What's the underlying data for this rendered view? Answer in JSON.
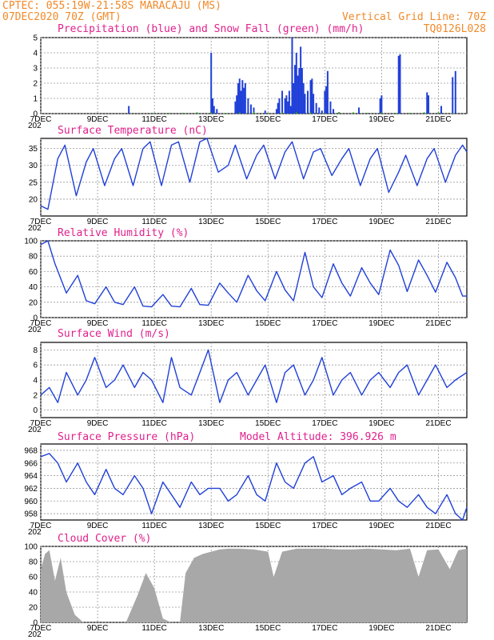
{
  "header": {
    "line1": "CPTEC:   055:19W-21:58S   MARACAJU (MS)",
    "line2": "07DEC2020 70Z (GMT)",
    "grid_note": "Vertical Grid Line: 70Z",
    "code": "TQ0126L028"
  },
  "colors": {
    "header": "#f08a2a",
    "title": "#e0208c",
    "series": "#2040d8",
    "snow": "#20a020",
    "cloud": "#a8a8a8"
  },
  "x_axis": {
    "start_day": 7,
    "end_day": 22,
    "tick_labels": [
      "7DEC",
      "9DEC",
      "11DEC",
      "13DEC",
      "15DEC",
      "17DEC",
      "19DEC",
      "21DEC"
    ],
    "tick_days": [
      7,
      9,
      11,
      13,
      15,
      17,
      19,
      21
    ],
    "year_stub": "202"
  },
  "chart_data": [
    {
      "type": "bar",
      "title": "Precipitation (blue) and Snow Fall (green) (mm/h)",
      "ylim": [
        0,
        5
      ],
      "yticks": [
        0,
        1,
        2,
        3,
        4,
        5
      ],
      "series": [
        {
          "name": "Precipitation",
          "color": "#2040d8",
          "x": [
            10.1,
            13.0,
            13.05,
            13.1,
            13.2,
            13.85,
            13.9,
            13.95,
            14.0,
            14.05,
            14.1,
            14.15,
            14.2,
            14.3,
            14.4,
            14.5,
            14.9,
            15.3,
            15.35,
            15.4,
            15.5,
            15.6,
            15.65,
            15.7,
            15.75,
            15.8,
            15.85,
            15.9,
            15.95,
            16.0,
            16.05,
            16.1,
            16.15,
            16.2,
            16.25,
            16.3,
            16.4,
            16.5,
            16.55,
            16.6,
            16.7,
            16.8,
            16.9,
            17.0,
            17.05,
            17.1,
            17.2,
            17.3,
            18.2,
            18.95,
            19.0,
            19.6,
            19.65,
            20.6,
            20.65,
            21.1,
            21.5,
            21.6
          ],
          "y": [
            0.5,
            4.0,
            1.0,
            0.5,
            0.3,
            0.8,
            1.2,
            2.0,
            2.3,
            1.5,
            2.2,
            1.7,
            2.0,
            1.0,
            0.6,
            0.4,
            0.2,
            0.3,
            0.7,
            1.0,
            1.5,
            1.0,
            1.2,
            0.8,
            1.5,
            0.5,
            5.0,
            2.0,
            3.2,
            4.0,
            2.5,
            3.0,
            4.4,
            3.0,
            2.0,
            1.3,
            1.5,
            2.2,
            2.3,
            1.3,
            0.7,
            0.4,
            0.2,
            1.5,
            1.8,
            2.8,
            0.8,
            0.3,
            0.4,
            1.0,
            1.2,
            3.8,
            3.9,
            1.4,
            1.2,
            0.5,
            2.4,
            2.8
          ]
        },
        {
          "name": "Snow Fall",
          "color": "#20a020",
          "x": [
            11.0,
            11.5,
            12.0,
            12.5,
            13.0,
            13.5,
            14.0,
            14.5,
            15.0,
            15.5,
            16.0,
            16.5,
            17.0,
            17.5,
            18.0,
            18.5,
            19.0,
            19.5,
            20.0,
            20.5,
            21.0,
            21.5
          ],
          "y": [
            0.05,
            0.05,
            0.05,
            0.08,
            0.08,
            0.05,
            0.08,
            0.1,
            0.05,
            0.08,
            0.1,
            0.08,
            0.05,
            0.1,
            0.08,
            0.05,
            0.08,
            0.05,
            0.05,
            0.08,
            0.08,
            0.05
          ]
        }
      ]
    },
    {
      "type": "line",
      "title": "Surface Temperature (nC)",
      "ylim": [
        15,
        38
      ],
      "yticks": [
        20,
        25,
        30,
        35
      ],
      "series": [
        {
          "name": "Temperature",
          "color": "#2040d8",
          "x": [
            7.0,
            7.25,
            7.6,
            7.85,
            8.25,
            8.6,
            8.85,
            9.25,
            9.6,
            9.85,
            10.25,
            10.6,
            10.85,
            11.25,
            11.6,
            11.85,
            12.25,
            12.6,
            12.85,
            13.25,
            13.6,
            13.85,
            14.25,
            14.6,
            14.85,
            15.25,
            15.6,
            15.85,
            16.25,
            16.6,
            16.85,
            17.25,
            17.6,
            17.85,
            18.25,
            18.6,
            18.85,
            19.25,
            19.6,
            19.85,
            20.25,
            20.6,
            20.85,
            21.25,
            21.6,
            21.85,
            22.0
          ],
          "y": [
            18,
            17,
            32,
            36,
            21,
            31,
            35,
            24,
            32,
            35,
            24,
            35,
            37,
            24,
            36,
            37,
            25,
            37,
            38,
            28,
            30,
            36,
            26,
            33,
            36,
            26,
            34,
            37,
            26,
            34,
            35,
            27,
            32,
            35,
            24,
            32,
            35,
            22,
            28,
            33,
            24,
            32,
            35,
            25,
            33,
            36,
            34
          ]
        }
      ]
    },
    {
      "type": "line",
      "title": "Relative Humidity (%)",
      "ylim": [
        0,
        100
      ],
      "yticks": [
        0,
        20,
        40,
        60,
        80,
        100
      ],
      "series": [
        {
          "name": "Relative Humidity",
          "color": "#2040d8",
          "x": [
            7.0,
            7.25,
            7.5,
            7.9,
            8.3,
            8.6,
            8.9,
            9.3,
            9.6,
            9.9,
            10.3,
            10.6,
            10.9,
            11.3,
            11.6,
            11.9,
            12.3,
            12.6,
            12.9,
            13.3,
            13.6,
            13.9,
            14.3,
            14.6,
            14.9,
            15.3,
            15.6,
            15.9,
            16.3,
            16.6,
            16.9,
            17.3,
            17.6,
            17.9,
            18.3,
            18.6,
            18.9,
            19.3,
            19.6,
            19.9,
            20.3,
            20.6,
            20.9,
            21.3,
            21.6,
            21.85,
            22.0
          ],
          "y": [
            95,
            100,
            70,
            32,
            55,
            22,
            18,
            40,
            20,
            17,
            40,
            15,
            14,
            30,
            15,
            14,
            38,
            17,
            16,
            45,
            32,
            20,
            55,
            35,
            22,
            60,
            36,
            22,
            85,
            40,
            26,
            70,
            45,
            28,
            65,
            45,
            30,
            88,
            68,
            34,
            75,
            55,
            33,
            72,
            52,
            28,
            28
          ]
        }
      ]
    },
    {
      "type": "line",
      "title": "Surface Wind (m/s)",
      "ylim": [
        -1,
        9
      ],
      "yticks": [
        0,
        2,
        4,
        6,
        8
      ],
      "series": [
        {
          "name": "Wind Speed",
          "color": "#2040d8",
          "x": [
            7.0,
            7.3,
            7.6,
            7.9,
            8.3,
            8.6,
            8.9,
            9.3,
            9.6,
            9.9,
            10.3,
            10.6,
            10.9,
            11.3,
            11.6,
            11.9,
            12.3,
            12.6,
            12.9,
            13.3,
            13.6,
            13.9,
            14.3,
            14.6,
            14.9,
            15.3,
            15.6,
            15.9,
            16.3,
            16.6,
            16.9,
            17.3,
            17.6,
            17.9,
            18.3,
            18.6,
            18.9,
            19.3,
            19.6,
            19.9,
            20.3,
            20.6,
            20.9,
            21.3,
            21.6,
            22.0
          ],
          "y": [
            2,
            3,
            1,
            5,
            2,
            4,
            7,
            3,
            4,
            6,
            3,
            5,
            4,
            1,
            7,
            3,
            2,
            5,
            8,
            1,
            4,
            5,
            2,
            4,
            6,
            1,
            5,
            6,
            2,
            4,
            7,
            2,
            4,
            5,
            2,
            4,
            5,
            3,
            5,
            6,
            2,
            4,
            6,
            3,
            4,
            5
          ]
        }
      ]
    },
    {
      "type": "line",
      "title": "Surface Pressure (hPa)",
      "subtitle": "Model Altitude: 396.926 m",
      "ylim": [
        957,
        969
      ],
      "yticks": [
        958,
        960,
        962,
        964,
        966,
        968
      ],
      "series": [
        {
          "name": "Pressure",
          "color": "#2040d8",
          "x": [
            7.0,
            7.3,
            7.6,
            7.9,
            8.3,
            8.6,
            8.9,
            9.3,
            9.6,
            9.9,
            10.3,
            10.6,
            10.9,
            11.3,
            11.6,
            11.9,
            12.3,
            12.6,
            12.9,
            13.3,
            13.6,
            13.9,
            14.3,
            14.6,
            14.9,
            15.3,
            15.6,
            15.9,
            16.3,
            16.6,
            16.9,
            17.3,
            17.6,
            17.9,
            18.3,
            18.6,
            18.9,
            19.3,
            19.6,
            19.9,
            20.3,
            20.6,
            20.9,
            21.3,
            21.6,
            21.85,
            22.0
          ],
          "y": [
            967,
            967.5,
            966,
            963,
            966,
            963,
            961,
            965,
            962,
            961,
            964,
            962,
            958,
            963,
            961,
            959,
            963,
            961,
            962,
            962,
            960,
            961,
            964,
            961,
            960,
            966,
            963,
            962,
            966,
            967,
            963,
            964,
            961,
            962,
            963,
            960,
            960,
            962,
            960,
            959,
            961,
            959,
            958,
            961,
            958,
            957,
            959
          ]
        }
      ]
    },
    {
      "type": "area",
      "title": "Cloud Cover (%)",
      "ylim": [
        0,
        100
      ],
      "yticks": [
        0,
        20,
        40,
        60,
        80,
        100
      ],
      "series": [
        {
          "name": "Cloud Cover",
          "color": "#a8a8a8",
          "x": [
            7.0,
            7.15,
            7.3,
            7.5,
            7.7,
            7.9,
            8.0,
            8.2,
            8.5,
            9.0,
            9.5,
            10.0,
            10.4,
            10.7,
            11.0,
            11.3,
            11.6,
            11.9,
            12.1,
            12.4,
            12.7,
            13.0,
            13.3,
            13.6,
            14.0,
            14.5,
            15.0,
            15.2,
            15.5,
            16.0,
            16.5,
            17.0,
            17.5,
            18.0,
            18.5,
            19.0,
            19.5,
            20.0,
            20.3,
            20.6,
            21.0,
            21.4,
            21.7,
            22.0
          ],
          "y": [
            70,
            90,
            95,
            55,
            85,
            40,
            30,
            10,
            0,
            0,
            0,
            0,
            35,
            65,
            45,
            5,
            0,
            0,
            65,
            85,
            90,
            93,
            96,
            97,
            97,
            96,
            93,
            60,
            93,
            97,
            97,
            97,
            96,
            96,
            97,
            96,
            95,
            97,
            60,
            95,
            96,
            70,
            95,
            97
          ]
        }
      ]
    }
  ]
}
